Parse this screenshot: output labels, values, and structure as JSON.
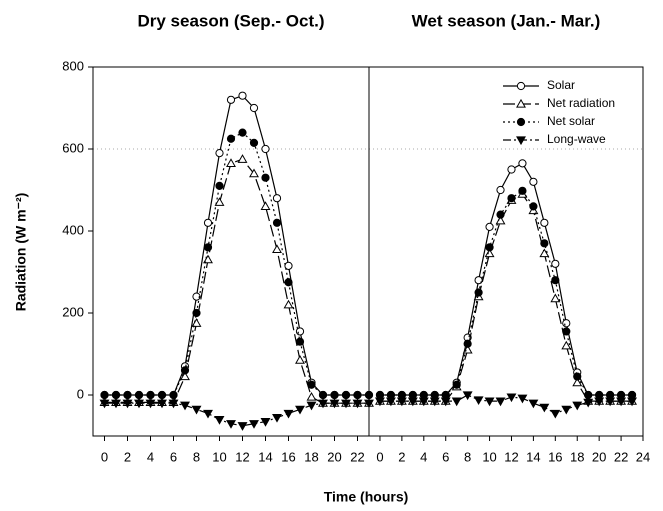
{
  "figure": {
    "x_label": "Time (hours)",
    "y_label": "Radiation (W m⁻²)"
  },
  "chart_data": [
    {
      "type": "line",
      "title": "Dry season (Sep.- Oct.)",
      "x": [
        0,
        1,
        2,
        3,
        4,
        5,
        6,
        7,
        8,
        9,
        10,
        11,
        12,
        13,
        14,
        15,
        16,
        17,
        18,
        19,
        20,
        21,
        22,
        23
      ],
      "xlim": [
        -1,
        23
      ],
      "xticks": [
        0,
        2,
        4,
        6,
        8,
        10,
        12,
        14,
        16,
        18,
        20,
        22
      ],
      "ylim": [
        -100,
        800
      ],
      "yticks": [
        0,
        200,
        400,
        600,
        800
      ],
      "hlines": [
        600
      ],
      "series": [
        {
          "name": "Solar",
          "color": "#000000",
          "line_style": "solid",
          "marker": "open-circle",
          "values": [
            0,
            0,
            0,
            0,
            0,
            0,
            0,
            70,
            240,
            420,
            590,
            720,
            730,
            700,
            600,
            480,
            315,
            155,
            30,
            0,
            0,
            0,
            0,
            0
          ]
        },
        {
          "name": "Net radiation",
          "color": "#000000",
          "line_style": "dashed",
          "marker": "open-triangle",
          "values": [
            -18,
            -18,
            -18,
            -18,
            -18,
            -18,
            -18,
            45,
            175,
            330,
            470,
            565,
            575,
            540,
            460,
            355,
            220,
            85,
            -5,
            -20,
            -20,
            -20,
            -20,
            -20
          ]
        },
        {
          "name": "Net solar",
          "color": "#000000",
          "line_style": "dotted",
          "marker": "filled-circle",
          "values": [
            0,
            0,
            0,
            0,
            0,
            0,
            0,
            60,
            200,
            360,
            510,
            625,
            640,
            615,
            530,
            420,
            275,
            130,
            25,
            0,
            0,
            0,
            0,
            0
          ]
        },
        {
          "name": "Long-wave",
          "color": "#000000",
          "line_style": "dashdot",
          "marker": "filled-down-triangle",
          "values": [
            -20,
            -20,
            -20,
            -20,
            -20,
            -20,
            -20,
            -25,
            -35,
            -45,
            -60,
            -70,
            -75,
            -70,
            -65,
            -55,
            -45,
            -35,
            -25,
            -20,
            -20,
            -20,
            -20,
            -20
          ]
        }
      ]
    },
    {
      "type": "line",
      "title": "Wet season (Jan.- Mar.)",
      "x": [
        0,
        1,
        2,
        3,
        4,
        5,
        6,
        7,
        8,
        9,
        10,
        11,
        12,
        13,
        14,
        15,
        16,
        17,
        18,
        19,
        20,
        21,
        22,
        23
      ],
      "xlim": [
        -1,
        24
      ],
      "xticks": [
        0,
        2,
        4,
        6,
        8,
        10,
        12,
        14,
        16,
        18,
        20,
        22,
        24
      ],
      "ylim": [
        -100,
        800
      ],
      "hlines": [
        600
      ],
      "legend": "upper right",
      "series": [
        {
          "name": "Solar",
          "color": "#000000",
          "line_style": "solid",
          "marker": "open-circle",
          "values": [
            0,
            0,
            0,
            0,
            0,
            0,
            0,
            30,
            140,
            280,
            410,
            500,
            550,
            565,
            520,
            420,
            320,
            175,
            55,
            0,
            0,
            0,
            0,
            0
          ]
        },
        {
          "name": "Net radiation",
          "color": "#000000",
          "line_style": "dashed",
          "marker": "open-triangle",
          "values": [
            -15,
            -15,
            -15,
            -15,
            -15,
            -15,
            -15,
            20,
            110,
            240,
            345,
            425,
            475,
            490,
            450,
            345,
            235,
            120,
            30,
            -15,
            -15,
            -15,
            -15,
            -15
          ]
        },
        {
          "name": "Net solar",
          "color": "#000000",
          "line_style": "dotted",
          "marker": "filled-circle",
          "values": [
            0,
            0,
            0,
            0,
            0,
            0,
            0,
            25,
            125,
            250,
            360,
            440,
            480,
            498,
            460,
            370,
            280,
            155,
            45,
            0,
            0,
            0,
            0,
            0
          ]
        },
        {
          "name": "Long-wave",
          "color": "#000000",
          "line_style": "dashdot",
          "marker": "filled-down-triangle",
          "values": [
            -15,
            -15,
            -15,
            -15,
            -15,
            -15,
            -15,
            -15,
            0,
            -12,
            -15,
            -15,
            -5,
            -8,
            -20,
            -30,
            -45,
            -35,
            -25,
            -18,
            -15,
            -15,
            -15,
            -15
          ]
        }
      ]
    }
  ]
}
